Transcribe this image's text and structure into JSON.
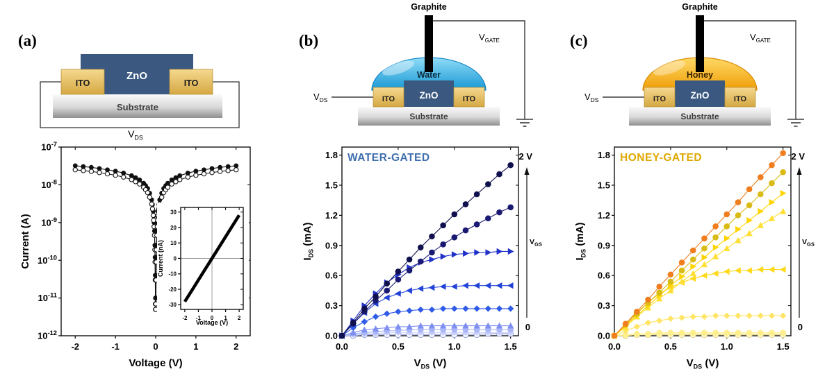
{
  "figure": {
    "panels": {
      "a": {
        "label": "(a)",
        "schematic": {
          "zno": "ZnO",
          "ito_left": "ITO",
          "ito_right": "ITO",
          "substrate": "Substrate",
          "vds": {
            "main": "V",
            "sub": "DS"
          }
        }
      },
      "b": {
        "label": "(b)",
        "schematic": {
          "graphite": "Graphite",
          "liquid": "Water",
          "zno": "ZnO",
          "ito_left": "ITO",
          "ito_right": "ITO",
          "substrate": "Substrate",
          "vds": {
            "main": "V",
            "sub": "DS"
          },
          "vgate": {
            "main": "V",
            "sub": "GATE"
          }
        }
      },
      "c": {
        "label": "(c)",
        "schematic": {
          "graphite": "Graphite",
          "liquid": "Honey",
          "zno": "ZnO",
          "ito_left": "ITO",
          "ito_right": "ITO",
          "substrate": "Substrate",
          "vds": {
            "main": "V",
            "sub": "DS"
          },
          "vgate": {
            "main": "V",
            "sub": "GATE"
          }
        }
      }
    },
    "colors": {
      "zno": "#3a5880",
      "ito": "#e8c269",
      "water": "#29abe2",
      "honey": "#f5a100",
      "water_title": "#3f6fae",
      "honey_title": "#dfa800"
    }
  },
  "chart_data": [
    {
      "target": "chart-a",
      "type": "scatter",
      "yscale": "log",
      "margins": {
        "l": 64,
        "r": 16,
        "t": 14,
        "b": 54
      },
      "xlim": [
        -2.35,
        2.35
      ],
      "ylim": [
        1e-12,
        1e-07
      ],
      "xticks": [
        -2,
        -1,
        0,
        1,
        2
      ],
      "xtick_labels": [
        "-2",
        "-1",
        "0",
        "1",
        "2"
      ],
      "yticks": [
        1e-07,
        1e-08,
        1e-09,
        1e-10,
        1e-11,
        1e-12
      ],
      "ytick_sup": [
        "-7",
        "-8",
        "-9",
        "-10",
        "-11",
        "-12"
      ],
      "xlabel": {
        "main": "Voltage (V)"
      },
      "ylabel": {
        "main": "Current (A)"
      },
      "tick_font": 13,
      "label_font": 15,
      "marker_size": 3.3,
      "x": [
        -2,
        -1.8,
        -1.6,
        -1.4,
        -1.2,
        -1,
        -0.8,
        -0.6,
        -0.5,
        -0.4,
        -0.3,
        -0.25,
        -0.2,
        -0.15,
        -0.1,
        -0.08,
        -0.06,
        -0.05,
        -0.04,
        -0.03,
        -0.02,
        -0.015,
        -0.01,
        -0.005,
        -0.003,
        0.003,
        0.005,
        0.01,
        0.015,
        0.02,
        0.03,
        0.04,
        0.05,
        0.06,
        0.08,
        0.1,
        0.15,
        0.2,
        0.25,
        0.3,
        0.4,
        0.5,
        0.6,
        0.8,
        1,
        1.2,
        1.4,
        1.6,
        1.8,
        2
      ],
      "series": [
        {
          "name": "sweep-filled",
          "color": "#111111",
          "marker": "circle",
          "line": true,
          "y": [
            3.2e-08,
            3.05e-08,
            2.9e-08,
            2.7e-08,
            2.5e-08,
            2.3e-08,
            2.05e-08,
            1.75e-08,
            1.55e-08,
            1.35e-08,
            1.1e-08,
            9.5e-09,
            8e-09,
            6e-09,
            4e-09,
            3e-09,
            2e-09,
            1.5e-09,
            1e-09,
            6e-10,
            2.5e-10,
            1.2e-10,
            4e-11,
            1e-11,
            7e-12,
            7e-12,
            1e-11,
            4e-11,
            1.2e-10,
            2.5e-10,
            6e-10,
            1e-09,
            1.5e-09,
            2e-09,
            3e-09,
            4e-09,
            6e-09,
            8e-09,
            9.5e-09,
            1.1e-08,
            1.35e-08,
            1.55e-08,
            1.75e-08,
            2.05e-08,
            2.3e-08,
            2.5e-08,
            2.7e-08,
            2.9e-08,
            3.05e-08,
            3.2e-08
          ]
        },
        {
          "name": "sweep-open",
          "color": "#111111",
          "marker": "circle",
          "open": true,
          "line": true,
          "y": [
            2.5e-08,
            2.38e-08,
            2.26e-08,
            2.11e-08,
            1.95e-08,
            1.79e-08,
            1.6e-08,
            1.37e-08,
            1.21e-08,
            1.05e-08,
            8.6e-09,
            7.4e-09,
            6.2e-09,
            4.7e-09,
            3.1e-09,
            2.3e-09,
            1.55e-09,
            1.15e-09,
            7.8e-10,
            4.6e-10,
            1.9e-10,
            9e-11,
            3e-11,
            7e-12,
            5e-12,
            5e-12,
            7e-12,
            3e-11,
            9e-11,
            1.9e-10,
            4.6e-10,
            7.8e-10,
            1.15e-09,
            1.55e-09,
            2.3e-09,
            3.1e-09,
            4.7e-09,
            6.2e-09,
            7.4e-09,
            8.6e-09,
            1.05e-08,
            1.21e-08,
            1.37e-08,
            1.6e-08,
            1.79e-08,
            1.95e-08,
            2.11e-08,
            2.26e-08,
            2.38e-08,
            2.5e-08
          ]
        }
      ]
    },
    {
      "target": "chart-a-inset",
      "type": "line",
      "background": true,
      "zero_lines": true,
      "margins": {
        "l": 34,
        "r": 8,
        "t": 7,
        "b": 32
      },
      "xlim": [
        -2.3,
        2.3
      ],
      "ylim": [
        -33,
        33
      ],
      "xticks": [
        -2,
        -1,
        0,
        1,
        2
      ],
      "xtick_labels": [
        "-2",
        "-1",
        "0",
        "1",
        "2"
      ],
      "yticks": [
        -30,
        -20,
        -10,
        0,
        10,
        20,
        30
      ],
      "ytick_labels": [
        "-30",
        "-20",
        "-10",
        "0",
        "10",
        "20",
        "30"
      ],
      "xlabel": {
        "main": "Voltage (V)"
      },
      "ylabel": {
        "main": "Current (nA)"
      },
      "tick_font": 8,
      "label_font": 9,
      "ylabel_x": 8,
      "x": [
        -2,
        -1.5,
        -1,
        -0.5,
        0,
        0.5,
        1,
        1.5,
        2
      ],
      "series": [
        {
          "name": "linear-iv",
          "color": "#000000",
          "marker": "none",
          "line": true,
          "line_width": 4.5,
          "y": [
            -28,
            -21,
            -14,
            -7,
            0,
            7,
            14,
            21,
            28
          ]
        }
      ]
    },
    {
      "target": "chart-b",
      "type": "scatter",
      "title": {
        "text": "WATER-GATED",
        "color": "#3f6fae"
      },
      "margins": {
        "l": 62,
        "r": 56,
        "t": 14,
        "b": 54
      },
      "xlim": [
        0,
        1.57
      ],
      "ylim": [
        0,
        1.88
      ],
      "xticks": [
        0,
        0.5,
        1,
        1.5
      ],
      "xtick_labels": [
        "0.0",
        "0.5",
        "1.0",
        "1.5"
      ],
      "yticks": [
        0,
        0.3,
        0.6,
        0.9,
        1.2,
        1.5,
        1.8
      ],
      "ytick_labels": [
        "0.0",
        "0.3",
        "0.6",
        "0.9",
        "1.2",
        "1.5",
        "1.8"
      ],
      "xlabel": {
        "main": "V",
        "sub": "DS",
        "post": " (V)"
      },
      "ylabel": {
        "main": "I",
        "sub": "DS",
        "post": " (mA)"
      },
      "tick_font": 13,
      "label_font": 15,
      "marker_size": 4.2,
      "right_annotation": {
        "top": "2 V",
        "bottom": "0",
        "label_main": "V",
        "label_sub": "GS"
      },
      "x": [
        0,
        0.1,
        0.2,
        0.3,
        0.4,
        0.5,
        0.6,
        0.7,
        0.8,
        0.9,
        1,
        1.1,
        1.2,
        1.3,
        1.4,
        1.5
      ],
      "series": [
        {
          "vgs": 0,
          "color": "#9aa6dd",
          "marker": "circle",
          "open": true,
          "y": [
            0,
            0,
            0.01,
            0.01,
            0.01,
            0.01,
            0.01,
            0.01,
            0.01,
            0.01,
            0.01,
            0.01,
            0.01,
            0.02,
            0.02,
            0.02
          ]
        },
        {
          "vgs": 0.25,
          "color": "#c9d1fa",
          "marker": "diamond",
          "y": [
            0,
            0.01,
            0.02,
            0.02,
            0.03,
            0.03,
            0.03,
            0.03,
            0.03,
            0.03,
            0.03,
            0.03,
            0.03,
            0.03,
            0.03,
            0.03
          ]
        },
        {
          "vgs": 0.5,
          "color": "#aab6f8",
          "marker": "circle",
          "y": [
            0,
            0.02,
            0.03,
            0.04,
            0.05,
            0.05,
            0.06,
            0.06,
            0.06,
            0.06,
            0.06,
            0.06,
            0.06,
            0.06,
            0.06,
            0.06
          ]
        },
        {
          "vgs": 0.75,
          "color": "#7e8ef3",
          "marker": "tri-up",
          "y": [
            0,
            0.03,
            0.06,
            0.07,
            0.08,
            0.09,
            0.09,
            0.1,
            0.1,
            0.1,
            0.1,
            0.1,
            0.1,
            0.1,
            0.1,
            0.1
          ]
        },
        {
          "vgs": 1,
          "color": "#2f5be8",
          "marker": "diamond",
          "y": [
            0,
            0.08,
            0.14,
            0.19,
            0.22,
            0.24,
            0.25,
            0.26,
            0.26,
            0.27,
            0.27,
            0.27,
            0.27,
            0.27,
            0.27,
            0.27
          ]
        },
        {
          "vgs": 1.25,
          "color": "#2243d8",
          "marker": "tri-left",
          "y": [
            0,
            0.12,
            0.23,
            0.32,
            0.38,
            0.42,
            0.45,
            0.47,
            0.48,
            0.49,
            0.49,
            0.5,
            0.5,
            0.5,
            0.5,
            0.5
          ]
        },
        {
          "vgs": 1.5,
          "color": "#2030c8",
          "marker": "tri-right",
          "y": [
            0,
            0.15,
            0.3,
            0.42,
            0.53,
            0.61,
            0.68,
            0.73,
            0.76,
            0.79,
            0.81,
            0.82,
            0.83,
            0.83,
            0.84,
            0.84
          ]
        },
        {
          "vgs": 1.75,
          "color": "#1a1a72",
          "marker": "circle",
          "y": [
            0,
            0.12,
            0.24,
            0.35,
            0.45,
            0.56,
            0.65,
            0.74,
            0.83,
            0.91,
            0.98,
            1.05,
            1.11,
            1.17,
            1.23,
            1.28
          ]
        },
        {
          "vgs": 2,
          "color": "#10104e",
          "marker": "circle",
          "y": [
            0,
            0.13,
            0.27,
            0.39,
            0.52,
            0.64,
            0.76,
            0.88,
            0.99,
            1.1,
            1.21,
            1.31,
            1.41,
            1.51,
            1.61,
            1.7
          ]
        }
      ]
    },
    {
      "target": "chart-c",
      "type": "scatter",
      "title": {
        "text": "HONEY-GATED",
        "color": "#dfa800"
      },
      "margins": {
        "l": 62,
        "r": 56,
        "t": 14,
        "b": 54
      },
      "xlim": [
        0,
        1.57
      ],
      "ylim": [
        0,
        1.88
      ],
      "xticks": [
        0,
        0.5,
        1,
        1.5
      ],
      "xtick_labels": [
        "0.0",
        "0.5",
        "1.0",
        "1.5"
      ],
      "yticks": [
        0,
        0.3,
        0.6,
        0.9,
        1.2,
        1.5,
        1.8
      ],
      "ytick_labels": [
        "0.0",
        "0.3",
        "0.6",
        "0.9",
        "1.2",
        "1.5",
        "1.8"
      ],
      "xlabel": {
        "main": "V",
        "sub": "DS",
        "post": " (V)"
      },
      "ylabel": {
        "main": "I",
        "sub": "DS",
        "post": " (mA)"
      },
      "tick_font": 13,
      "label_font": 15,
      "marker_size": 4.2,
      "right_annotation": {
        "top": "2 V",
        "bottom": "0",
        "label_main": "V",
        "label_sub": "GS"
      },
      "x": [
        0,
        0.1,
        0.2,
        0.3,
        0.4,
        0.5,
        0.6,
        0.7,
        0.8,
        0.9,
        1,
        1.1,
        1.2,
        1.3,
        1.4,
        1.5
      ],
      "series": [
        {
          "vgs": 0,
          "color": "#e3d47f",
          "marker": "circle",
          "open": true,
          "y": [
            0,
            0,
            0.01,
            0.01,
            0.01,
            0.01,
            0.01,
            0.01,
            0.01,
            0.01,
            0.01,
            0.01,
            0.01,
            0.01,
            0.01,
            0.01
          ]
        },
        {
          "vgs": 0.25,
          "color": "#fff3b0",
          "marker": "diamond",
          "y": [
            0,
            0.01,
            0.01,
            0.01,
            0.02,
            0.02,
            0.02,
            0.02,
            0.02,
            0.02,
            0.02,
            0.02,
            0.02,
            0.02,
            0.02,
            0.02
          ]
        },
        {
          "vgs": 0.5,
          "color": "#ffee8c",
          "marker": "circle",
          "y": [
            0,
            0.01,
            0.02,
            0.02,
            0.03,
            0.03,
            0.03,
            0.03,
            0.03,
            0.03,
            0.03,
            0.03,
            0.03,
            0.03,
            0.03,
            0.03
          ]
        },
        {
          "vgs": 0.75,
          "color": "#ffe566",
          "marker": "diamond",
          "y": [
            0,
            0.05,
            0.09,
            0.13,
            0.15,
            0.17,
            0.18,
            0.19,
            0.19,
            0.2,
            0.2,
            0.2,
            0.2,
            0.2,
            0.2,
            0.2
          ]
        },
        {
          "vgs": 1,
          "color": "#ffd91a",
          "marker": "tri-left",
          "y": [
            0,
            0.12,
            0.23,
            0.33,
            0.42,
            0.48,
            0.53,
            0.57,
            0.6,
            0.62,
            0.64,
            0.65,
            0.65,
            0.66,
            0.66,
            0.66
          ]
        },
        {
          "vgs": 1.25,
          "color": "#ffdf33",
          "marker": "tri-up",
          "y": [
            0,
            0.09,
            0.19,
            0.28,
            0.37,
            0.45,
            0.54,
            0.62,
            0.71,
            0.79,
            0.87,
            0.95,
            1.02,
            1.1,
            1.17,
            1.24
          ]
        },
        {
          "vgs": 1.5,
          "color": "#ffd400",
          "marker": "tri-right",
          "y": [
            0,
            0.1,
            0.2,
            0.3,
            0.4,
            0.5,
            0.59,
            0.69,
            0.78,
            0.88,
            0.97,
            1.06,
            1.15,
            1.24,
            1.33,
            1.42
          ]
        },
        {
          "vgs": 1.75,
          "color": "#d9bb16",
          "marker": "circle",
          "y": [
            0,
            0.11,
            0.22,
            0.33,
            0.43,
            0.54,
            0.65,
            0.76,
            0.87,
            0.98,
            1.09,
            1.2,
            1.3,
            1.41,
            1.52,
            1.63
          ]
        },
        {
          "vgs": 2,
          "color": "#f07d1e",
          "marker": "circle",
          "y": [
            0,
            0.12,
            0.24,
            0.36,
            0.49,
            0.61,
            0.73,
            0.85,
            0.97,
            1.09,
            1.21,
            1.33,
            1.46,
            1.58,
            1.7,
            1.82
          ]
        }
      ]
    }
  ]
}
